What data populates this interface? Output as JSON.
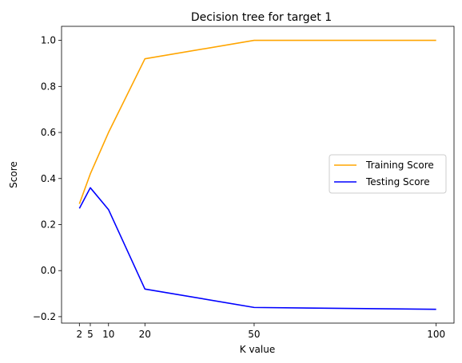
{
  "chart_data": {
    "type": "line",
    "title": "Decision tree for target 1",
    "xlabel": "K value",
    "ylabel": "Score",
    "x": [
      2,
      5,
      10,
      20,
      50,
      100
    ],
    "x_ticks": [
      2,
      5,
      10,
      20,
      50,
      100
    ],
    "y_ticks": [
      "−0.2",
      "0.0",
      "0.2",
      "0.4",
      "0.6",
      "0.8",
      "1.0"
    ],
    "y_tick_values": [
      -0.2,
      0.0,
      0.2,
      0.4,
      0.6,
      0.8,
      1.0
    ],
    "xlim": [
      -2.9,
      104.9
    ],
    "ylim": [
      -0.228,
      1.061
    ],
    "series": [
      {
        "name": "Training Score",
        "color": "#ffa500",
        "values": [
          0.29,
          0.42,
          0.6,
          0.92,
          1.0,
          1.0
        ]
      },
      {
        "name": "Testing Score",
        "color": "#0000ff",
        "values": [
          0.27,
          0.36,
          0.265,
          -0.08,
          -0.16,
          -0.168
        ]
      }
    ],
    "legend_position": "center-right",
    "grid": false
  }
}
